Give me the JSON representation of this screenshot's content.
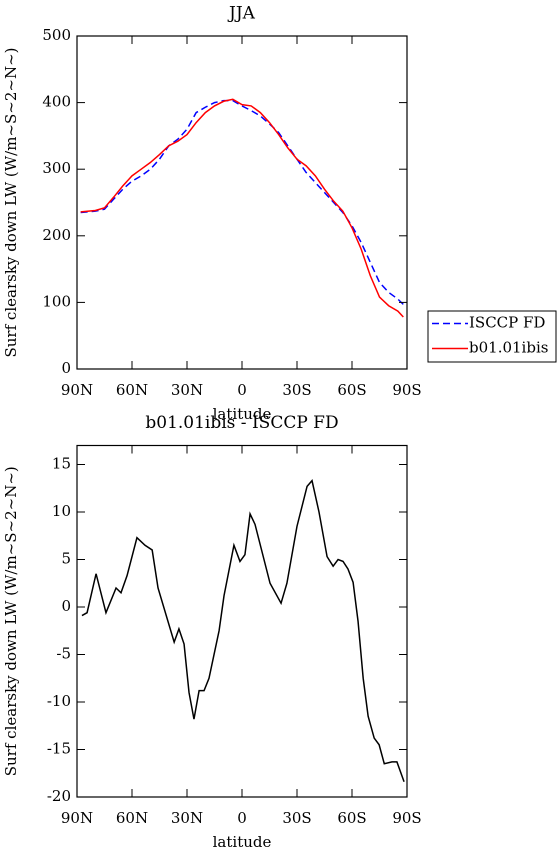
{
  "chart_data": [
    {
      "type": "line",
      "title": "JJA",
      "xlabel": "latitude",
      "ylabel": "Surf clearsky down LW (W/m~S~2~N~)",
      "x": [
        88,
        80,
        75,
        70,
        65,
        60,
        55,
        50,
        45,
        40,
        35,
        30,
        25,
        20,
        15,
        10,
        5,
        0,
        -5,
        -10,
        -15,
        -20,
        -25,
        -30,
        -35,
        -40,
        -45,
        -50,
        -55,
        -60,
        -65,
        -70,
        -75,
        -80,
        -85,
        -88
      ],
      "series": [
        {
          "name": "ISCCP FD",
          "color": "#0000ff",
          "style": "dashed",
          "values": [
            235,
            237,
            240,
            255,
            270,
            282,
            290,
            300,
            315,
            335,
            345,
            360,
            385,
            393,
            400,
            403,
            403,
            395,
            388,
            380,
            368,
            355,
            335,
            315,
            295,
            280,
            265,
            250,
            235,
            215,
            190,
            160,
            130,
            115,
            105,
            97
          ]
        },
        {
          "name": "b01.01ibis",
          "color": "#ff0000",
          "style": "solid",
          "values": [
            236,
            238,
            242,
            258,
            275,
            290,
            300,
            310,
            322,
            335,
            342,
            352,
            370,
            385,
            395,
            402,
            405,
            397,
            395,
            385,
            370,
            352,
            332,
            315,
            305,
            290,
            270,
            252,
            237,
            212,
            180,
            140,
            108,
            95,
            87,
            78
          ]
        }
      ],
      "xlim": [
        90,
        -90
      ],
      "xticks": [
        {
          "value": 90,
          "label": "90N"
        },
        {
          "value": 60,
          "label": "60N"
        },
        {
          "value": 30,
          "label": "30N"
        },
        0,
        {
          "value": -30,
          "label": "30S"
        },
        {
          "value": -60,
          "label": "60S"
        },
        {
          "value": -90,
          "label": "90S"
        }
      ],
      "ylim": [
        0,
        500
      ],
      "yticks": [
        0,
        100,
        200,
        300,
        400,
        500
      ],
      "legend": "right"
    },
    {
      "type": "line",
      "title": "b01.01ibis - ISCCP FD",
      "xlabel": "latitude",
      "ylabel": "Surf clearsky down LW (W/m~S~2~N~)",
      "x": [
        87.3,
        84.5,
        79.6,
        74.2,
        68.7,
        66,
        62.7,
        57.3,
        52.9,
        49,
        45.8,
        37,
        34.4,
        31.6,
        28.9,
        26.2,
        23.4,
        20.7,
        18,
        12.5,
        9.8,
        4.4,
        1.1,
        -1.6,
        -4.4,
        -7.1,
        -15.3,
        -21.3,
        -24.5,
        -30,
        -35.5,
        -38.2,
        -42,
        -46.4,
        -49.7,
        -52.4,
        -55.1,
        -57.8,
        -60.6,
        -63.3,
        -66.1,
        -68.8,
        -72.1,
        -74.8,
        -77.6,
        -81.8,
        -84.5,
        -88.4
      ],
      "series": [
        {
          "color": "#000000",
          "style": "solid",
          "values": [
            -0.9,
            -0.6,
            3.5,
            -0.6,
            2,
            1.5,
            3.3,
            7.3,
            6.5,
            6,
            2,
            -3.7,
            -2.3,
            -3.9,
            -9,
            -11.8,
            -8.8,
            -8.8,
            -7.5,
            -2.5,
            1.2,
            6.5,
            4.8,
            5.5,
            9.8,
            8.7,
            2.5,
            0.4,
            2.5,
            8.5,
            12.7,
            13.3,
            10,
            5.3,
            4.3,
            5,
            4.8,
            4,
            2.6,
            -1.5,
            -7.5,
            -11.5,
            -13.8,
            -14.5,
            -16.5,
            -16.3,
            -16.3,
            -18.4
          ]
        }
      ],
      "xlim": [
        90,
        -90
      ],
      "xticks": [
        {
          "value": 90,
          "label": "90N"
        },
        {
          "value": 60,
          "label": "60N"
        },
        {
          "value": 30,
          "label": "30N"
        },
        0,
        {
          "value": -30,
          "label": "30S"
        },
        {
          "value": -60,
          "label": "60S"
        },
        {
          "value": -90,
          "label": "90S"
        }
      ],
      "ylim": [
        -20,
        17
      ],
      "yticks": [
        -20,
        -15,
        -10,
        -5,
        0,
        5,
        10,
        15
      ]
    }
  ]
}
